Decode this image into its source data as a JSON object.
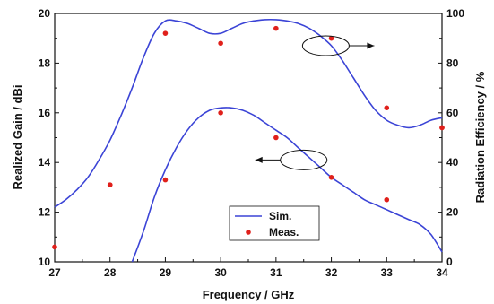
{
  "chart_data": {
    "type": "line",
    "xlabel": "Frequency / GHz",
    "ylabel_left": "Realized Gain / dBi",
    "ylabel_right": "Radiation Efficiency / %",
    "xlim": [
      27,
      34
    ],
    "ylim_left": [
      10,
      20
    ],
    "ylim_right": [
      0,
      100
    ],
    "x_ticks": [
      "27",
      "28",
      "29",
      "30",
      "31",
      "32",
      "33",
      "34"
    ],
    "y_left_ticks": [
      "10",
      "12",
      "14",
      "16",
      "18",
      "20"
    ],
    "y_right_ticks": [
      "0",
      "20",
      "40",
      "60",
      "80",
      "100"
    ],
    "legend": {
      "position": "bottom-center",
      "entries": [
        {
          "label": "Sim.",
          "marker": "line",
          "color": "#3b44d6"
        },
        {
          "label": "Meas.",
          "marker": "dot",
          "color": "#e0201b"
        }
      ]
    },
    "series": [
      {
        "axis": "right",
        "kind": "sim",
        "x": [
          27.0,
          27.2,
          27.4,
          27.6,
          27.8,
          28.0,
          28.2,
          28.4,
          28.6,
          28.8,
          29.0,
          29.2,
          29.4,
          29.6,
          29.8,
          30.0,
          30.2,
          30.4,
          30.6,
          30.8,
          31.0,
          31.2,
          31.4,
          31.6,
          31.8,
          32.0,
          32.2,
          32.4,
          32.6,
          32.8,
          33.0,
          33.2,
          33.4,
          33.6,
          33.8,
          34.0
        ],
        "y": [
          22,
          25,
          29,
          34,
          41,
          49,
          59,
          70,
          82,
          92,
          97,
          97,
          96,
          94,
          92,
          92,
          94,
          96,
          97,
          97.5,
          97.5,
          97,
          96,
          94,
          91,
          87,
          81,
          74,
          67,
          61,
          57,
          55,
          54,
          55,
          57,
          58
        ]
      },
      {
        "axis": "right",
        "kind": "meas",
        "x": [
          27,
          28,
          29,
          30,
          31,
          32,
          33,
          34
        ],
        "y": [
          6,
          31,
          92,
          88,
          94,
          90,
          62,
          54
        ]
      },
      {
        "axis": "left",
        "kind": "sim",
        "x": [
          28.4,
          28.6,
          28.8,
          29.0,
          29.2,
          29.4,
          29.6,
          29.8,
          30.0,
          30.2,
          30.4,
          30.6,
          30.8,
          31.0,
          31.2,
          31.4,
          31.6,
          31.8,
          32.0,
          32.2,
          32.4,
          32.6,
          32.8,
          33.0,
          33.2,
          33.4,
          33.6,
          33.8,
          34.0
        ],
        "y": [
          10.0,
          11.2,
          12.6,
          13.7,
          14.6,
          15.3,
          15.8,
          16.1,
          16.2,
          16.2,
          16.1,
          15.9,
          15.6,
          15.3,
          15.0,
          14.6,
          14.2,
          13.8,
          13.4,
          13.1,
          12.8,
          12.5,
          12.3,
          12.1,
          11.9,
          11.7,
          11.5,
          11.1,
          10.4
        ]
      },
      {
        "axis": "left",
        "kind": "meas",
        "x": [
          28,
          29,
          30,
          31,
          32,
          33,
          34
        ],
        "y": [
          13.1,
          13.3,
          16.0,
          15.0,
          13.4,
          12.5,
          15.4
        ]
      }
    ],
    "annotations": [
      {
        "type": "ellipse-arrow",
        "target_axis": "right",
        "direction": "right",
        "at_x": 31.9,
        "at_value": 87
      },
      {
        "type": "ellipse-arrow",
        "target_axis": "left",
        "direction": "left",
        "at_x": 31.5,
        "at_value": 14.1
      }
    ],
    "colors": {
      "sim": "#3b44d6",
      "meas": "#e0201b",
      "axis": "#111111"
    },
    "grid": false
  }
}
